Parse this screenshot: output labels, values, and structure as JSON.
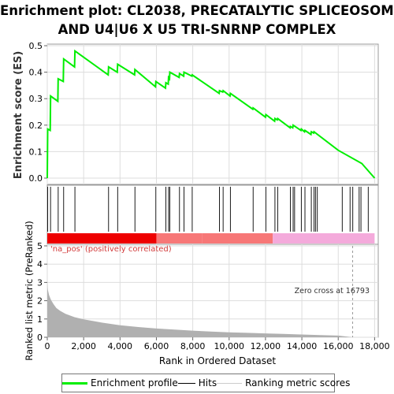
{
  "title_line1": "Enrichment plot: CL2038, PRECATALYTIC SPLICEOSOME,",
  "title_line2": "AND U4|U6 X U5 TRI-SNRNP COMPLEX",
  "colors": {
    "enrichment": "#00ee00",
    "hits": "#000000",
    "metric_fill": "#b0b0b0",
    "pos_strong": "#ee0000",
    "pos_mid": "#f77777",
    "neg_light": "#f4aadb",
    "annotation": "#d23c3c"
  },
  "chart_data": [
    {
      "type": "line",
      "name": "enrichment-profile",
      "ylabel": "Enrichment score (ES)",
      "ylim": [
        0,
        0.5
      ],
      "yticks": [
        "0.0",
        "0.1",
        "0.2",
        "0.3",
        "0.4",
        "0.5"
      ],
      "xlim": [
        0,
        18200
      ],
      "grid": true,
      "points": [
        [
          0,
          0.0
        ],
        [
          20,
          0.185
        ],
        [
          160,
          0.18
        ],
        [
          180,
          0.31
        ],
        [
          580,
          0.29
        ],
        [
          600,
          0.375
        ],
        [
          880,
          0.365
        ],
        [
          900,
          0.45
        ],
        [
          1500,
          0.42
        ],
        [
          1520,
          0.48
        ],
        [
          3350,
          0.39
        ],
        [
          3370,
          0.42
        ],
        [
          3850,
          0.4
        ],
        [
          3870,
          0.43
        ],
        [
          4800,
          0.39
        ],
        [
          4820,
          0.41
        ],
        [
          5950,
          0.345
        ],
        [
          5970,
          0.365
        ],
        [
          6500,
          0.34
        ],
        [
          6520,
          0.36
        ],
        [
          6650,
          0.355
        ],
        [
          6670,
          0.38
        ],
        [
          6720,
          0.375
        ],
        [
          6740,
          0.4
        ],
        [
          7250,
          0.38
        ],
        [
          7270,
          0.395
        ],
        [
          7500,
          0.385
        ],
        [
          7520,
          0.4
        ],
        [
          7950,
          0.385
        ],
        [
          7970,
          0.39
        ],
        [
          9450,
          0.32
        ],
        [
          9470,
          0.33
        ],
        [
          9650,
          0.325
        ],
        [
          9670,
          0.33
        ],
        [
          10050,
          0.31
        ],
        [
          10070,
          0.32
        ],
        [
          11300,
          0.26
        ],
        [
          11320,
          0.265
        ],
        [
          12000,
          0.23
        ],
        [
          12020,
          0.24
        ],
        [
          12500,
          0.215
        ],
        [
          12520,
          0.225
        ],
        [
          12650,
          0.22
        ],
        [
          12670,
          0.225
        ],
        [
          13350,
          0.19
        ],
        [
          13370,
          0.195
        ],
        [
          13500,
          0.19
        ],
        [
          13520,
          0.2
        ],
        [
          13950,
          0.18
        ],
        [
          13970,
          0.185
        ],
        [
          14150,
          0.175
        ],
        [
          14170,
          0.18
        ],
        [
          14500,
          0.165
        ],
        [
          14520,
          0.175
        ],
        [
          14650,
          0.17
        ],
        [
          14670,
          0.175
        ],
        [
          16000,
          0.105
        ],
        [
          17300,
          0.055
        ],
        [
          18000,
          0.0
        ]
      ]
    },
    {
      "type": "hits",
      "name": "hits",
      "x": [
        20,
        180,
        600,
        900,
        1520,
        3370,
        3870,
        4820,
        5970,
        6520,
        6670,
        6740,
        7270,
        7520,
        7970,
        9470,
        9670,
        10070,
        11320,
        12020,
        12520,
        12670,
        13370,
        13520,
        13600,
        13970,
        14170,
        14520,
        14670,
        14750,
        14850,
        16220,
        16650,
        16800,
        17150,
        17250,
        17650
      ],
      "heatmap_segments": [
        {
          "from": 0,
          "to": 6000,
          "level": "pos_strong"
        },
        {
          "from": 6000,
          "to": 8500,
          "level": "pos_mid"
        },
        {
          "from": 8500,
          "to": 12400,
          "level": "pos_mid"
        },
        {
          "from": 12400,
          "to": 18000,
          "level": "neg_light"
        }
      ]
    },
    {
      "type": "area",
      "name": "ranked-list-metric",
      "xlabel": "Rank in Ordered Dataset",
      "ylabel": "Ranked list metric (PreRanked)",
      "ylim": [
        0,
        5
      ],
      "yticks": [
        "0",
        "1",
        "2",
        "3",
        "4",
        "5"
      ],
      "xticks": [
        "0",
        "2,000",
        "4,000",
        "6,000",
        "8,000",
        "10,000",
        "12,000",
        "14,000",
        "16,000",
        "18,000"
      ],
      "xtick_values": [
        0,
        2000,
        4000,
        6000,
        8000,
        10000,
        12000,
        14000,
        16000,
        18000
      ],
      "xlim": [
        0,
        18200
      ],
      "points": [
        [
          0,
          3.0
        ],
        [
          30,
          2.6
        ],
        [
          100,
          2.3
        ],
        [
          200,
          2.05
        ],
        [
          350,
          1.8
        ],
        [
          500,
          1.6
        ],
        [
          700,
          1.45
        ],
        [
          1000,
          1.28
        ],
        [
          1500,
          1.1
        ],
        [
          2000,
          0.98
        ],
        [
          3000,
          0.8
        ],
        [
          4000,
          0.66
        ],
        [
          5000,
          0.56
        ],
        [
          6000,
          0.48
        ],
        [
          7000,
          0.42
        ],
        [
          8000,
          0.36
        ],
        [
          9000,
          0.31
        ],
        [
          10000,
          0.27
        ],
        [
          11000,
          0.24
        ],
        [
          12000,
          0.21
        ],
        [
          13000,
          0.18
        ],
        [
          14000,
          0.15
        ],
        [
          15000,
          0.12
        ],
        [
          16000,
          0.09
        ],
        [
          16793,
          0.0
        ]
      ],
      "zero_cross": 16793,
      "annotations": {
        "positive_label": "'na_pos' (positively correlated)",
        "zero_cross_label": "Zero cross at 16793"
      }
    }
  ],
  "legend": {
    "items": [
      "Enrichment profile",
      "Hits",
      "Ranking metric scores"
    ]
  }
}
